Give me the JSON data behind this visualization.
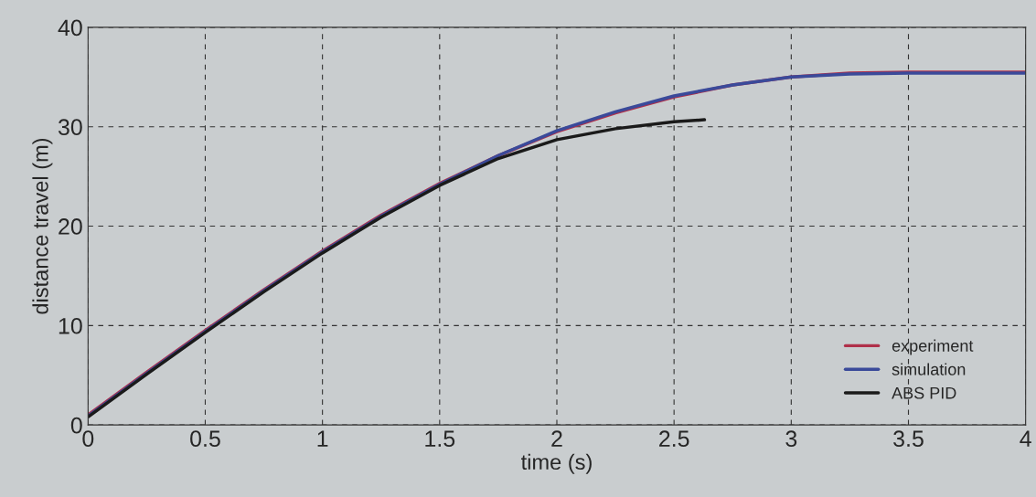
{
  "chart_data": {
    "type": "line",
    "xlabel": "time (s)",
    "ylabel": "distance travel (m)",
    "xlim": [
      0,
      4
    ],
    "xticks": [
      0,
      0.5,
      1,
      1.5,
      2,
      2.5,
      3,
      3.5,
      4
    ],
    "ylim": [
      0,
      40
    ],
    "yticks": [
      0,
      10,
      20,
      30,
      40
    ],
    "grid": true,
    "line_style": "solid",
    "legend": "bottom right",
    "series": [
      {
        "name": "experiment",
        "color": "#b0304a",
        "x": [
          0,
          0.25,
          0.5,
          0.75,
          1,
          1.25,
          1.5,
          1.75,
          2,
          2.25,
          2.5,
          2.75,
          3,
          3.25,
          3.5,
          3.75,
          4
        ],
        "values": [
          1,
          5.3,
          9.5,
          13.6,
          17.5,
          21.1,
          24.3,
          27.1,
          29.5,
          31.4,
          33,
          34.2,
          35,
          35.4,
          35.5,
          35.5,
          35.5
        ]
      },
      {
        "name": "simulation",
        "color": "#3a4a9a",
        "x": [
          0,
          0.25,
          0.5,
          0.75,
          1,
          1.25,
          1.5,
          1.75,
          2,
          2.25,
          2.5,
          2.75,
          3,
          3.25,
          3.5,
          3.75,
          4
        ],
        "values": [
          0.9,
          5.2,
          9.4,
          13.5,
          17.4,
          21,
          24.2,
          27.1,
          29.6,
          31.5,
          33.1,
          34.2,
          35,
          35.3,
          35.4,
          35.4,
          35.4
        ]
      },
      {
        "name": "ABS PID",
        "color": "#1a1a1a",
        "x": [
          0,
          0.25,
          0.5,
          0.75,
          1,
          1.25,
          1.5,
          1.75,
          2,
          2.25,
          2.5,
          2.63
        ],
        "values": [
          0.8,
          5.1,
          9.3,
          13.4,
          17.3,
          20.9,
          24.1,
          26.8,
          28.7,
          29.8,
          30.5,
          30.7
        ]
      }
    ]
  }
}
